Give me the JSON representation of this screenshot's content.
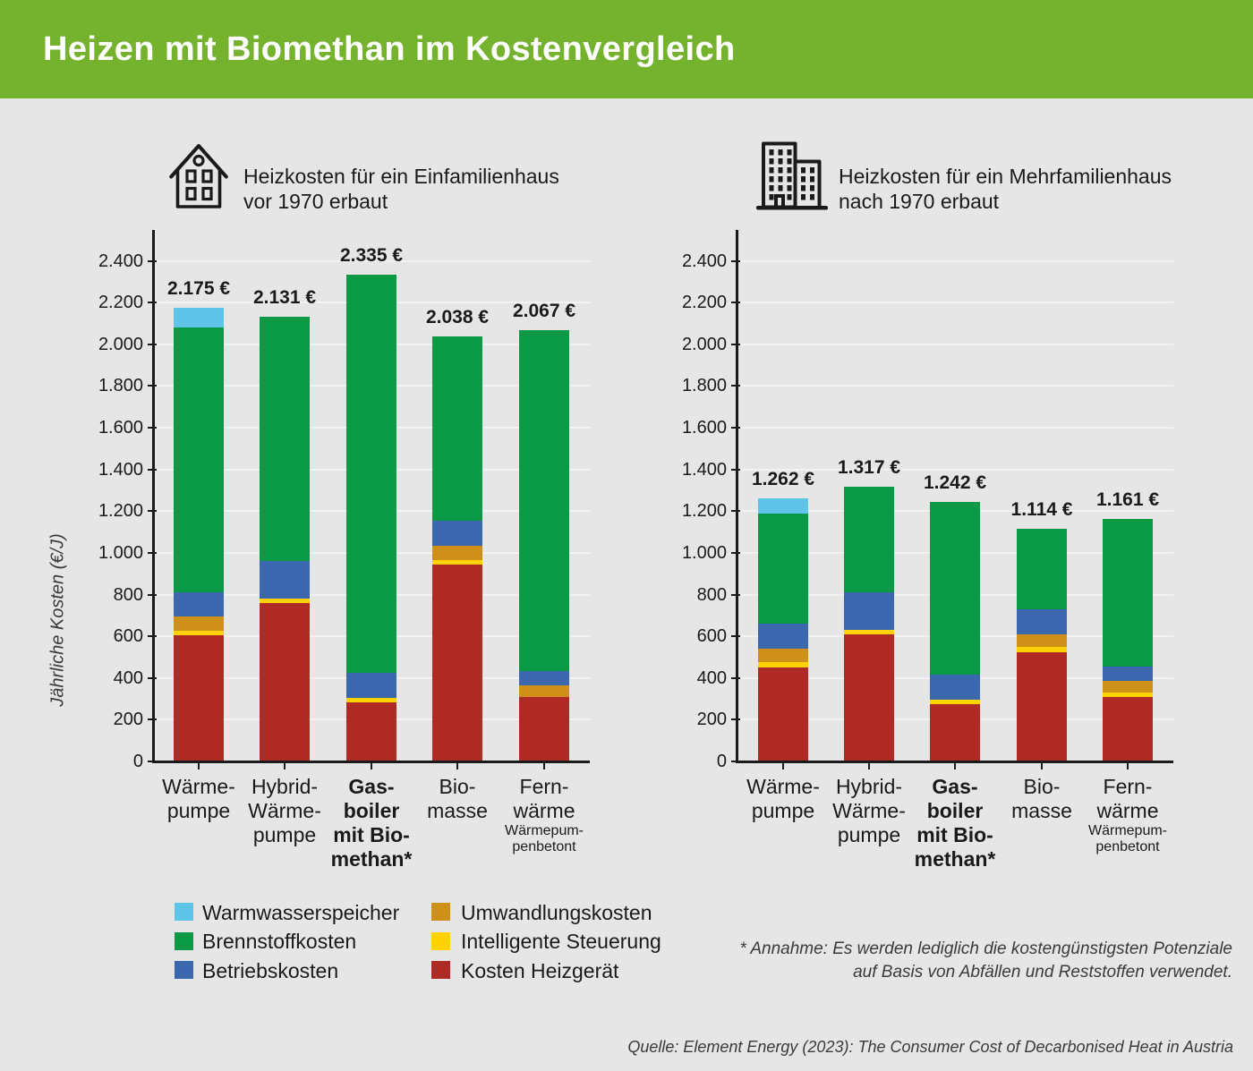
{
  "page": {
    "background": "#E6E6E6"
  },
  "header": {
    "title": "Heizen mit Biomethan im Kostenvergleich",
    "background": "#75B32F",
    "text_color": "#FFFFFF"
  },
  "charts": [
    {
      "icon": "house-icon",
      "caption_line1": "Heizkosten für ein Einfamilienhaus",
      "caption_line2": "vor 1970 erbaut"
    },
    {
      "icon": "building-icon",
      "caption_line1": "Heizkosten für ein Mehrfamilienhaus",
      "caption_line2": "nach 1970 erbaut"
    }
  ],
  "chart_data": [
    {
      "type": "bar",
      "stacked": true,
      "title": "Heizkosten für ein Einfamilienhaus vor 1970 erbaut",
      "ylabel": "Jährliche Kosten (€/J)",
      "ylim": [
        0,
        2400
      ],
      "ytick_step": 200,
      "ytick_labels": [
        "0",
        "200",
        "400",
        "600",
        "800",
        "1.000",
        "1.200",
        "1.400",
        "1.600",
        "1.800",
        "2.000",
        "2.200",
        "2.400"
      ],
      "grid": true,
      "categories": [
        {
          "lines": [
            "Wärme-",
            "pumpe"
          ],
          "bold": false,
          "sub": []
        },
        {
          "lines": [
            "Hybrid-",
            "Wärme-",
            "pumpe"
          ],
          "bold": false,
          "sub": []
        },
        {
          "lines": [
            "Gas-",
            "boiler",
            "mit Bio-",
            "methan*"
          ],
          "bold": true,
          "sub": []
        },
        {
          "lines": [
            "Bio-",
            "masse"
          ],
          "bold": false,
          "sub": []
        },
        {
          "lines": [
            "Fern-",
            "wärme"
          ],
          "bold": false,
          "sub": [
            "Wärmepum-",
            "penbetont"
          ]
        }
      ],
      "series": [
        {
          "name": "Kosten Heizgerät",
          "color": "#B02A25",
          "values": [
            605,
            760,
            285,
            945,
            310
          ]
        },
        {
          "name": "Intelligente Steuerung",
          "color": "#FFD204",
          "values": [
            20,
            20,
            20,
            20,
            0
          ]
        },
        {
          "name": "Umwandlungskosten",
          "color": "#CE9018",
          "values": [
            70,
            0,
            0,
            70,
            55
          ]
        },
        {
          "name": "Betriebskosten",
          "color": "#3A67AE",
          "values": [
            115,
            180,
            120,
            120,
            70
          ]
        },
        {
          "name": "Brennstoffkosten",
          "color": "#0A9A46",
          "values": [
            1270,
            1171,
            1910,
            883,
            1632
          ]
        },
        {
          "name": "Warmwasserspeicher",
          "color": "#5FC5E8",
          "values": [
            95,
            0,
            0,
            0,
            0
          ]
        }
      ],
      "totals": [
        2175,
        2131,
        2335,
        2038,
        2067
      ],
      "total_labels": [
        "2.175 €",
        "2.131 €",
        "2.335 €",
        "2.038 €",
        "2.067 €"
      ]
    },
    {
      "type": "bar",
      "stacked": true,
      "title": "Heizkosten für ein Mehrfamilienhaus nach 1970 erbaut",
      "ylabel": "Jährliche Kosten (€/J)",
      "ylim": [
        0,
        2400
      ],
      "ytick_step": 200,
      "ytick_labels": [
        "0",
        "200",
        "400",
        "600",
        "800",
        "1.000",
        "1.200",
        "1.400",
        "1.600",
        "1.800",
        "2.000",
        "2.200",
        "2.400"
      ],
      "grid": true,
      "categories": [
        {
          "lines": [
            "Wärme-",
            "pumpe"
          ],
          "bold": false,
          "sub": []
        },
        {
          "lines": [
            "Hybrid-",
            "Wärme-",
            "pumpe"
          ],
          "bold": false,
          "sub": []
        },
        {
          "lines": [
            "Gas-",
            "boiler",
            "mit Bio-",
            "methan*"
          ],
          "bold": true,
          "sub": []
        },
        {
          "lines": [
            "Bio-",
            "masse"
          ],
          "bold": false,
          "sub": []
        },
        {
          "lines": [
            "Fern-",
            "wärme"
          ],
          "bold": false,
          "sub": [
            "Wärmepum-",
            "penbetont"
          ]
        }
      ],
      "series": [
        {
          "name": "Kosten Heizgerät",
          "color": "#B02A25",
          "values": [
            450,
            610,
            275,
            525,
            310
          ]
        },
        {
          "name": "Intelligente Steuerung",
          "color": "#FFD204",
          "values": [
            25,
            20,
            20,
            25,
            20
          ]
        },
        {
          "name": "Umwandlungskosten",
          "color": "#CE9018",
          "values": [
            65,
            0,
            0,
            60,
            55
          ]
        },
        {
          "name": "Betriebskosten",
          "color": "#3A67AE",
          "values": [
            120,
            180,
            120,
            120,
            70
          ]
        },
        {
          "name": "Brennstoffkosten",
          "color": "#0A9A46",
          "values": [
            530,
            507,
            827,
            384,
            706
          ]
        },
        {
          "name": "Warmwasserspeicher",
          "color": "#5FC5E8",
          "values": [
            72,
            0,
            0,
            0,
            0
          ]
        }
      ],
      "totals": [
        1262,
        1317,
        1242,
        1114,
        1161
      ],
      "total_labels": [
        "1.262 €",
        "1.317 €",
        "1.242 €",
        "1.114 €",
        "1.161 €"
      ]
    }
  ],
  "legend": {
    "columns": [
      [
        {
          "label": "Warmwasserspeicher",
          "color": "#5FC5E8"
        },
        {
          "label": "Brennstoffkosten",
          "color": "#0A9A46"
        },
        {
          "label": "Betriebskosten",
          "color": "#3A67AE"
        }
      ],
      [
        {
          "label": "Umwandlungskosten",
          "color": "#CE9018"
        },
        {
          "label": "Intelligente Steuerung",
          "color": "#FFD204"
        },
        {
          "label": "Kosten Heizgerät",
          "color": "#B02A25"
        }
      ]
    ]
  },
  "footnote": {
    "line1": "* Annahme: Es werden lediglich die kostengünstigsten Potenziale",
    "line2": "auf Basis von Abfällen und Reststoffen verwendet."
  },
  "source_line": "Quelle: Element Energy (2023): The Consumer Cost of Decarbonised Heat in Austria"
}
